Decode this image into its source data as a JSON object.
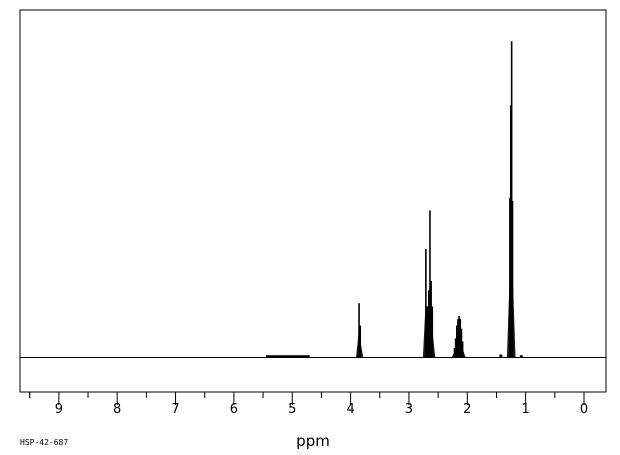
{
  "chart_data": {
    "type": "line",
    "xlabel": "ppm",
    "x_reversed": true,
    "xlim": [
      -0.3,
      9.7
    ],
    "x_ticks": [
      9,
      8,
      7,
      6,
      5,
      4,
      3,
      2,
      1,
      0
    ],
    "x_minor_step": 0.5,
    "ylim": [
      0,
      1
    ],
    "grid": false,
    "line_color": "#000000",
    "spectrum_id": "HSP-42-687",
    "peaks": [
      {
        "group": "~1.25 ppm",
        "lines": [
          {
            "ppm": 1.27,
            "height": 0.5
          },
          {
            "ppm": 1.255,
            "height": 0.79
          },
          {
            "ppm": 1.24,
            "height": 0.99
          },
          {
            "ppm": 1.225,
            "height": 0.49
          }
        ]
      },
      {
        "group": "~2.15 ppm",
        "lines": [
          {
            "ppm": 2.22,
            "height": 0.03
          },
          {
            "ppm": 2.2,
            "height": 0.06
          },
          {
            "ppm": 2.18,
            "height": 0.1
          },
          {
            "ppm": 2.16,
            "height": 0.12
          },
          {
            "ppm": 2.14,
            "height": 0.13
          },
          {
            "ppm": 2.12,
            "height": 0.12
          },
          {
            "ppm": 2.1,
            "height": 0.09
          },
          {
            "ppm": 2.08,
            "height": 0.05
          }
        ]
      },
      {
        "group": "~2.65 ppm",
        "lines": [
          {
            "ppm": 2.71,
            "height": 0.34
          },
          {
            "ppm": 2.685,
            "height": 0.16
          },
          {
            "ppm": 2.66,
            "height": 0.21
          },
          {
            "ppm": 2.64,
            "height": 0.46
          },
          {
            "ppm": 2.62,
            "height": 0.24
          },
          {
            "ppm": 2.6,
            "height": 0.16
          }
        ]
      },
      {
        "group": "~3.84 ppm",
        "lines": [
          {
            "ppm": 3.855,
            "height": 0.17
          },
          {
            "ppm": 3.835,
            "height": 0.1
          }
        ]
      }
    ],
    "baseline_noise": [
      {
        "from": 4.7,
        "to": 5.45,
        "height": 0.004
      },
      {
        "from": 1.4,
        "to": 1.45,
        "height": 0.006
      },
      {
        "from": 1.05,
        "to": 1.1,
        "height": 0.004
      }
    ]
  }
}
